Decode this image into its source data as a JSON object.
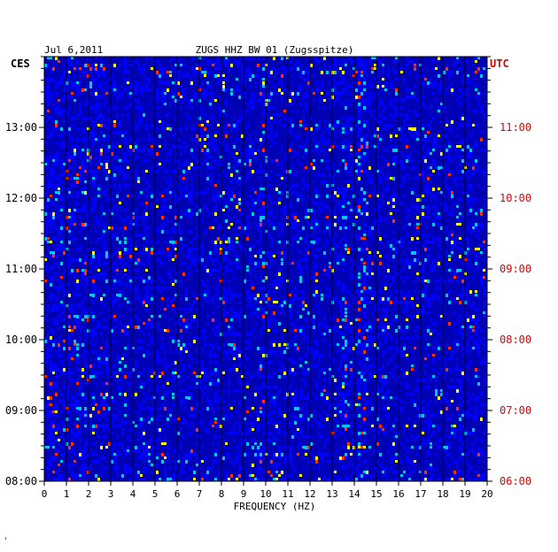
{
  "chart_data": {
    "type": "heatmap",
    "title": "ZUGS HHZ BW 01 (Zugsspitze)",
    "date": "Jul 6,2011",
    "left_label": "CES",
    "right_label": "UTC",
    "xlabel": "FREQUENCY (HZ)",
    "x_ticks": [
      "0",
      "1",
      "2",
      "3",
      "4",
      "5",
      "6",
      "7",
      "8",
      "9",
      "10",
      "11",
      "12",
      "13",
      "14",
      "15",
      "16",
      "17",
      "18",
      "19",
      "20"
    ],
    "xlim": [
      0,
      20
    ],
    "left_time_ticks": [
      "13:00",
      "12:00",
      "11:00",
      "10:00",
      "09:00",
      "08:00"
    ],
    "right_time_ticks": [
      "11:00",
      "10:00",
      "09:00",
      "08:00",
      "07:00",
      "06:00"
    ],
    "time_range_ces": [
      "08:00",
      "14:00"
    ],
    "grid": true,
    "colors": {
      "background": "#0000b4",
      "low": "#0000ff",
      "mid": "#00c8ff",
      "high": "#ffff00",
      "peak": "#ff3000",
      "utc_label": "#dd0000",
      "grid": "#000000"
    },
    "persistent_lines_hz": [
      9.8,
      13.5,
      14.3
    ],
    "corner_mark": "'"
  }
}
